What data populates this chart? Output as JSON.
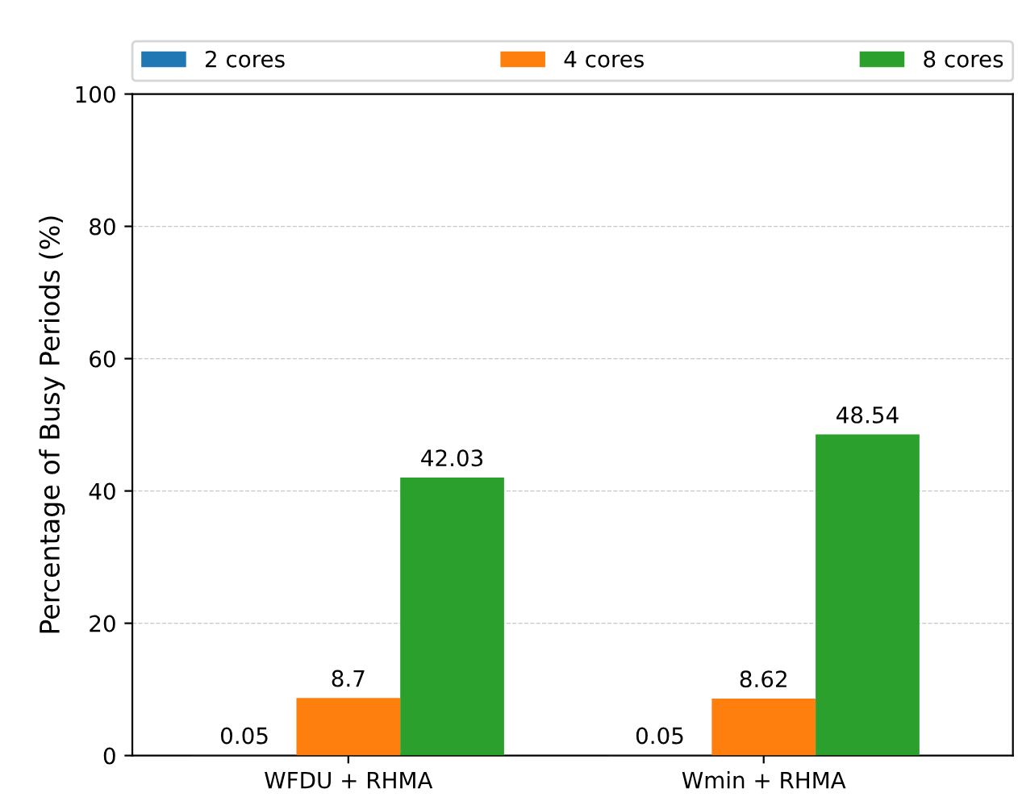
{
  "chart_data": {
    "type": "bar",
    "ylabel": "Percentage of Busy Periods (%)",
    "categories": [
      "WFDU + RHMA",
      "Wmin + RHMA"
    ],
    "series": [
      {
        "name": "2 cores",
        "color": "#1f77b4",
        "values": [
          0.05,
          0.05
        ]
      },
      {
        "name": "4 cores",
        "color": "#ff7f0e",
        "values": [
          8.7,
          8.62
        ]
      },
      {
        "name": "8 cores",
        "color": "#2ca02c",
        "values": [
          42.03,
          48.54
        ]
      }
    ],
    "ylim": [
      0,
      100
    ],
    "yticks": [
      0,
      20,
      40,
      60,
      80,
      100
    ],
    "grid": "y",
    "legend": "top",
    "data_labels": true
  }
}
